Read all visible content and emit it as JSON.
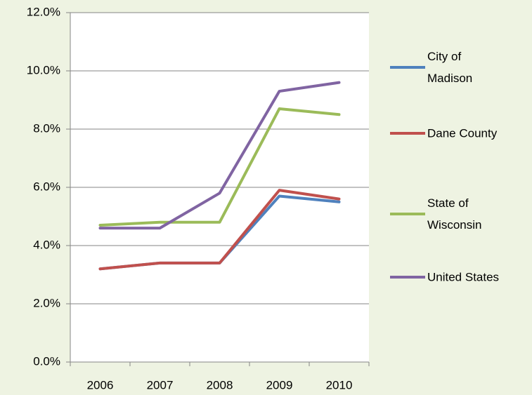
{
  "chart_data": {
    "type": "line",
    "categories": [
      "2006",
      "2007",
      "2008",
      "2009",
      "2010"
    ],
    "series": [
      {
        "name": "City of Madison",
        "color": "#4f81bd",
        "values": [
          3.2,
          3.4,
          3.4,
          5.7,
          5.5
        ]
      },
      {
        "name": "Dane County",
        "color": "#c0504d",
        "values": [
          3.2,
          3.4,
          3.4,
          5.9,
          5.6
        ]
      },
      {
        "name": "State of Wisconsin",
        "color": "#9bbb59",
        "values": [
          4.7,
          4.8,
          4.8,
          8.7,
          8.5
        ]
      },
      {
        "name": "United States",
        "color": "#8064a2",
        "values": [
          4.6,
          4.6,
          5.8,
          9.3,
          9.6
        ]
      }
    ],
    "ylim": [
      0,
      12
    ],
    "yticks": [
      {
        "value": 0,
        "label": "0.0%"
      },
      {
        "value": 2,
        "label": "2.0%"
      },
      {
        "value": 4,
        "label": "4.0%"
      },
      {
        "value": 6,
        "label": "6.0%"
      },
      {
        "value": 8,
        "label": "8.0%"
      },
      {
        "value": 10,
        "label": "10.0%"
      },
      {
        "value": 12,
        "label": "12.0%"
      }
    ],
    "grid": true,
    "legend": "right"
  }
}
